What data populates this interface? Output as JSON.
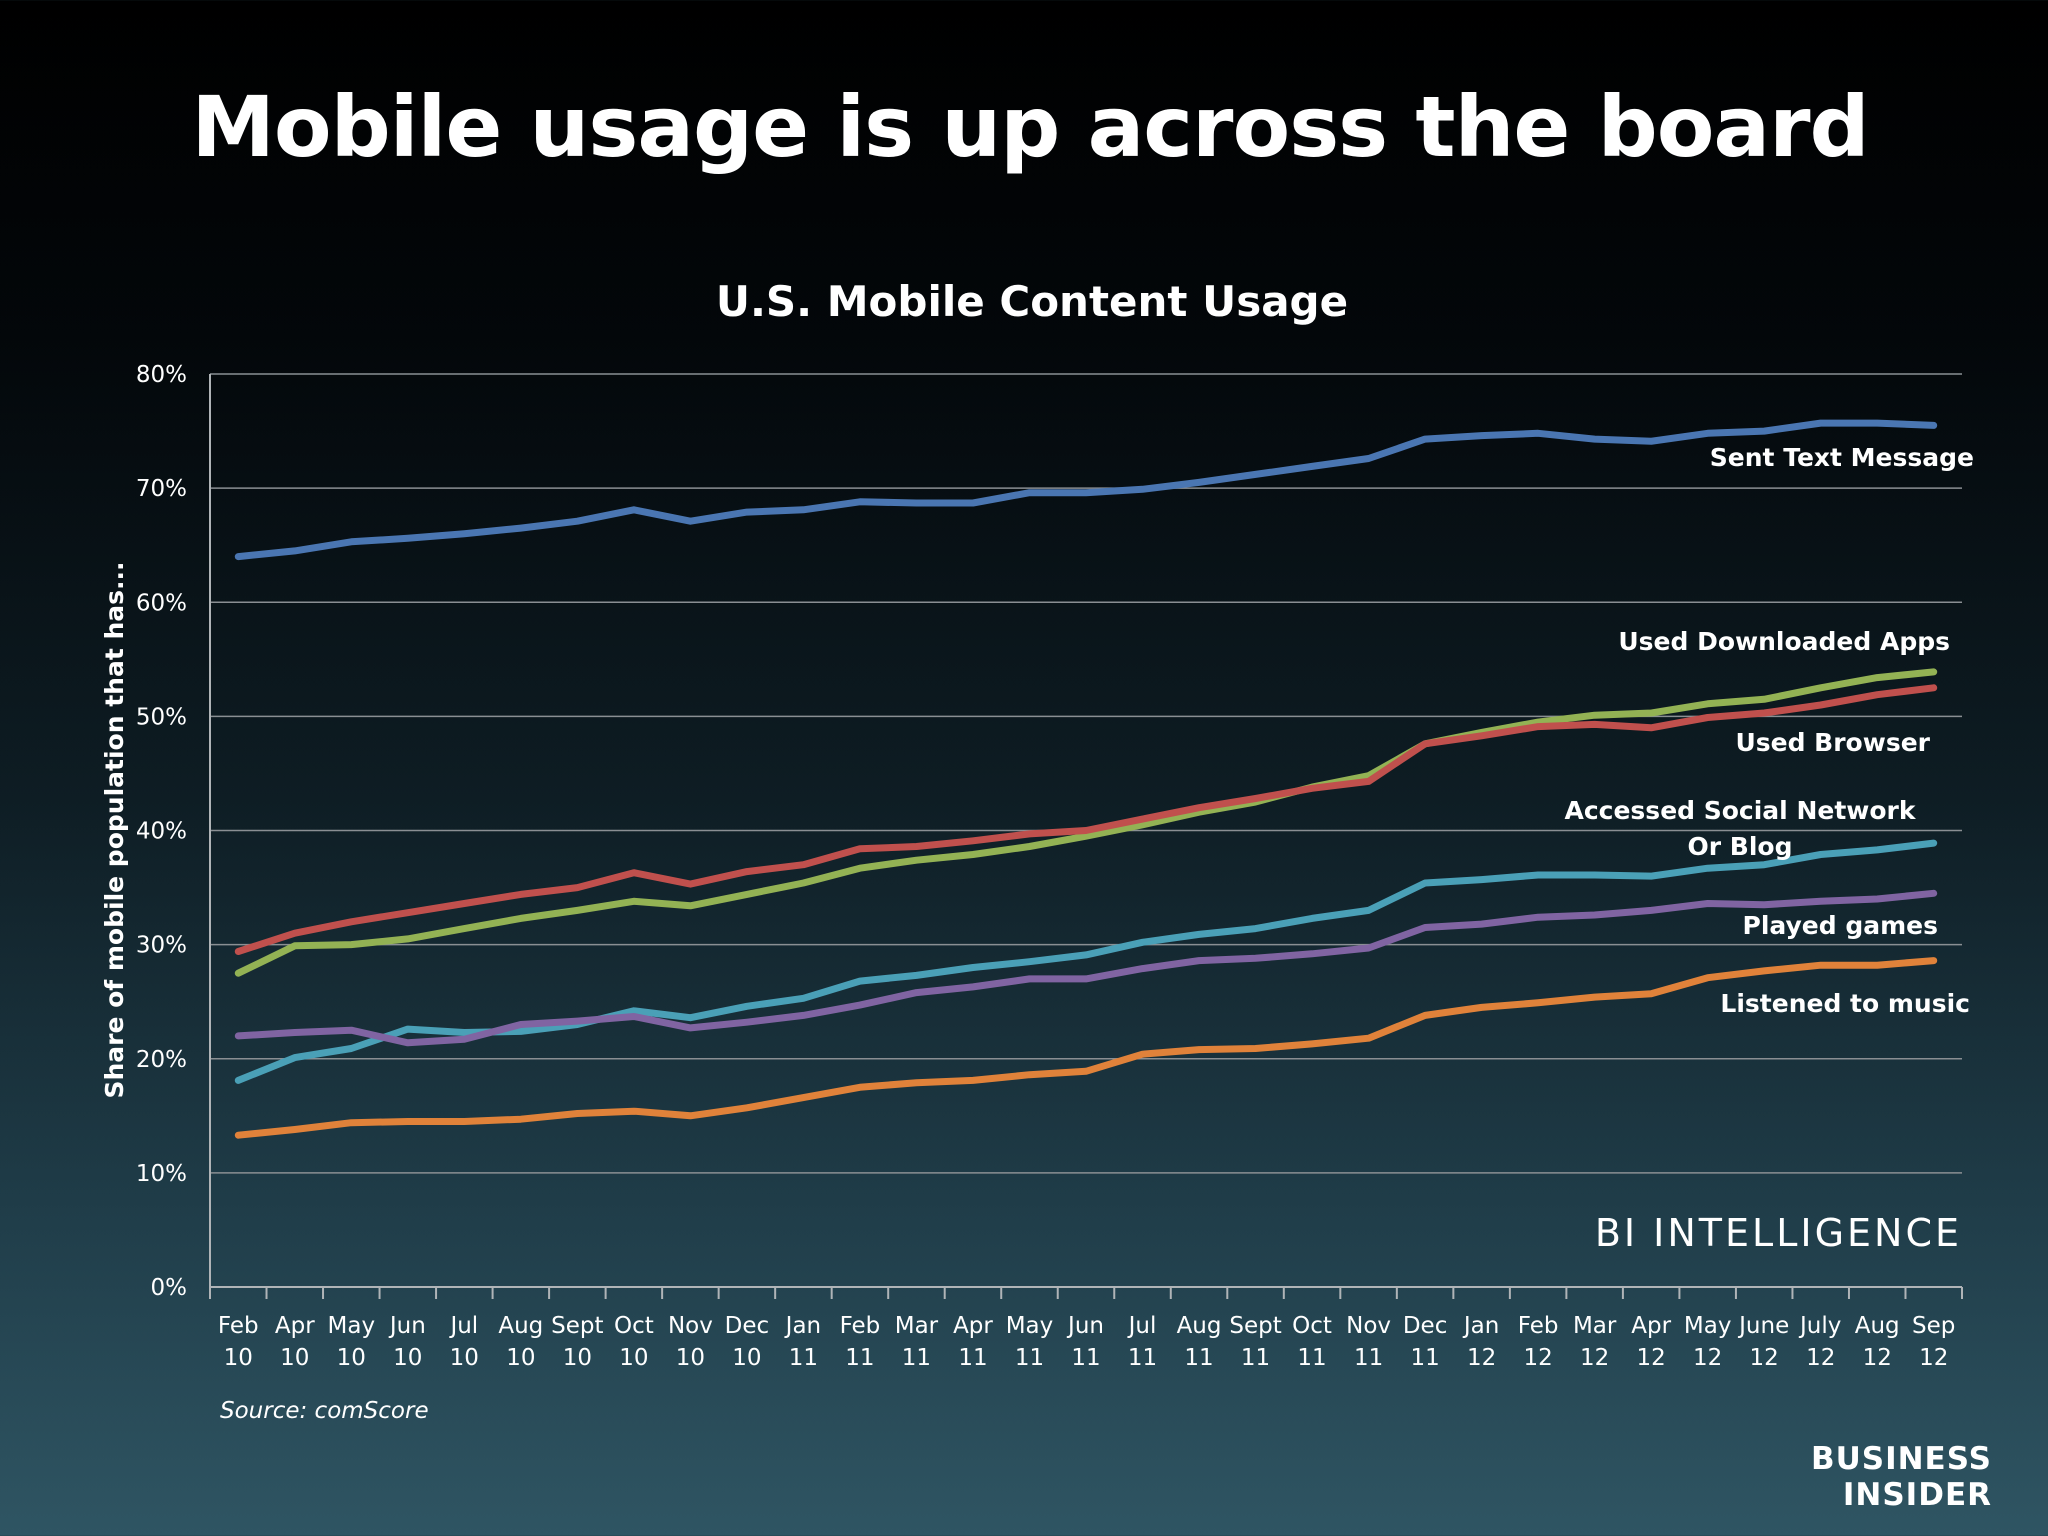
{
  "slide": {
    "title": "Mobile usage is up across the board",
    "source": "Source: comScore",
    "watermark": "BI INTELLIGENCE",
    "logo_line1": "BUSINESS",
    "logo_line2": "INSIDER"
  },
  "chart_data": {
    "type": "line",
    "title": "U.S. Mobile Content Usage",
    "xlabel": "",
    "ylabel": "Share of mobile population that has...",
    "ylim": [
      0,
      80
    ],
    "ytick_labels": [
      "0%",
      "10%",
      "20%",
      "30%",
      "40%",
      "50%",
      "60%",
      "70%",
      "80%"
    ],
    "grid": true,
    "categories": [
      [
        "Feb",
        "10"
      ],
      [
        "Apr",
        "10"
      ],
      [
        "May",
        "10"
      ],
      [
        "Jun",
        "10"
      ],
      [
        "Jul",
        "10"
      ],
      [
        "Aug",
        "10"
      ],
      [
        "Sept",
        "10"
      ],
      [
        "Oct",
        "10"
      ],
      [
        "Nov",
        "10"
      ],
      [
        "Dec",
        "10"
      ],
      [
        "Jan",
        "11"
      ],
      [
        "Feb",
        "11"
      ],
      [
        "Mar",
        "11"
      ],
      [
        "Apr",
        "11"
      ],
      [
        "May",
        "11"
      ],
      [
        "Jun",
        "11"
      ],
      [
        "Jul",
        "11"
      ],
      [
        "Aug",
        "11"
      ],
      [
        "Sept",
        "11"
      ],
      [
        "Oct",
        "11"
      ],
      [
        "Nov",
        "11"
      ],
      [
        "Dec",
        "11"
      ],
      [
        "Jan",
        "12"
      ],
      [
        "Feb",
        "12"
      ],
      [
        "Mar",
        "12"
      ],
      [
        "Apr",
        "12"
      ],
      [
        "May",
        "12"
      ],
      [
        "June",
        "12"
      ],
      [
        "July",
        "12"
      ],
      [
        "Aug",
        "12"
      ],
      [
        "Sep",
        "12"
      ]
    ],
    "series": [
      {
        "name": "Sent Text Message",
        "color": "#4a76b2",
        "values": [
          64.0,
          64.5,
          65.3,
          65.6,
          66.0,
          66.5,
          67.1,
          68.1,
          67.1,
          67.9,
          68.1,
          68.8,
          68.7,
          68.7,
          69.6,
          69.6,
          69.9,
          70.5,
          71.2,
          71.9,
          72.6,
          74.3,
          74.6,
          74.8,
          74.3,
          74.1,
          74.8,
          75.0,
          75.7,
          75.7,
          75.5
        ]
      },
      {
        "name": "Used Downloaded Apps",
        "color": "#93b254",
        "values": [
          27.5,
          29.9,
          30.0,
          30.5,
          31.4,
          32.3,
          33.0,
          33.8,
          33.4,
          34.4,
          35.4,
          36.7,
          37.4,
          37.9,
          38.6,
          39.5,
          40.5,
          41.6,
          42.5,
          43.8,
          44.8,
          47.6,
          48.6,
          49.5,
          50.1,
          50.3,
          51.1,
          51.5,
          52.5,
          53.4,
          53.9
        ]
      },
      {
        "name": "Used Browser",
        "color": "#c0504d",
        "values": [
          29.4,
          31.0,
          32.0,
          32.8,
          33.6,
          34.4,
          35.0,
          36.3,
          35.3,
          36.4,
          37.0,
          38.4,
          38.6,
          39.1,
          39.7,
          40.0,
          41.0,
          42.0,
          42.8,
          43.7,
          44.3,
          47.6,
          48.3,
          49.1,
          49.3,
          49.0,
          49.9,
          50.3,
          51.0,
          51.9,
          52.5
        ]
      },
      {
        "name": "Accessed Social Network Or Blog",
        "color": "#4aa0b7",
        "values": [
          18.1,
          20.1,
          20.9,
          22.6,
          22.3,
          22.4,
          23.0,
          24.2,
          23.6,
          24.6,
          25.3,
          26.8,
          27.3,
          28.0,
          28.5,
          29.1,
          30.2,
          30.9,
          31.4,
          32.3,
          33.0,
          35.4,
          35.7,
          36.1,
          36.1,
          36.0,
          36.7,
          37.0,
          37.9,
          38.3,
          38.9
        ]
      },
      {
        "name": "Played games",
        "color": "#8064a2",
        "values": [
          22.0,
          22.3,
          22.5,
          21.4,
          21.7,
          23.0,
          23.3,
          23.7,
          22.7,
          23.2,
          23.8,
          24.7,
          25.8,
          26.3,
          27.0,
          27.0,
          27.9,
          28.6,
          28.8,
          29.2,
          29.7,
          31.5,
          31.8,
          32.4,
          32.6,
          33.0,
          33.6,
          33.5,
          33.8,
          34.0,
          34.5
        ]
      },
      {
        "name": "Listened to music",
        "color": "#e0823a",
        "values": [
          13.3,
          13.8,
          14.4,
          14.5,
          14.5,
          14.7,
          15.2,
          15.4,
          15.0,
          15.7,
          16.6,
          17.5,
          17.9,
          18.1,
          18.6,
          18.9,
          20.4,
          20.8,
          20.9,
          21.3,
          21.8,
          23.8,
          24.5,
          24.9,
          25.4,
          25.7,
          27.1,
          27.7,
          28.2,
          28.2,
          28.6
        ]
      }
    ],
    "series_labels": [
      {
        "lines": [
          "Sent Text Message"
        ]
      },
      {
        "lines": [
          "Used Downloaded Apps"
        ]
      },
      {
        "lines": [
          "Used Browser"
        ]
      },
      {
        "lines": [
          "Accessed Social Network",
          "Or Blog"
        ]
      },
      {
        "lines": [
          "Played games"
        ]
      },
      {
        "lines": [
          "Listened to music"
        ]
      }
    ]
  }
}
